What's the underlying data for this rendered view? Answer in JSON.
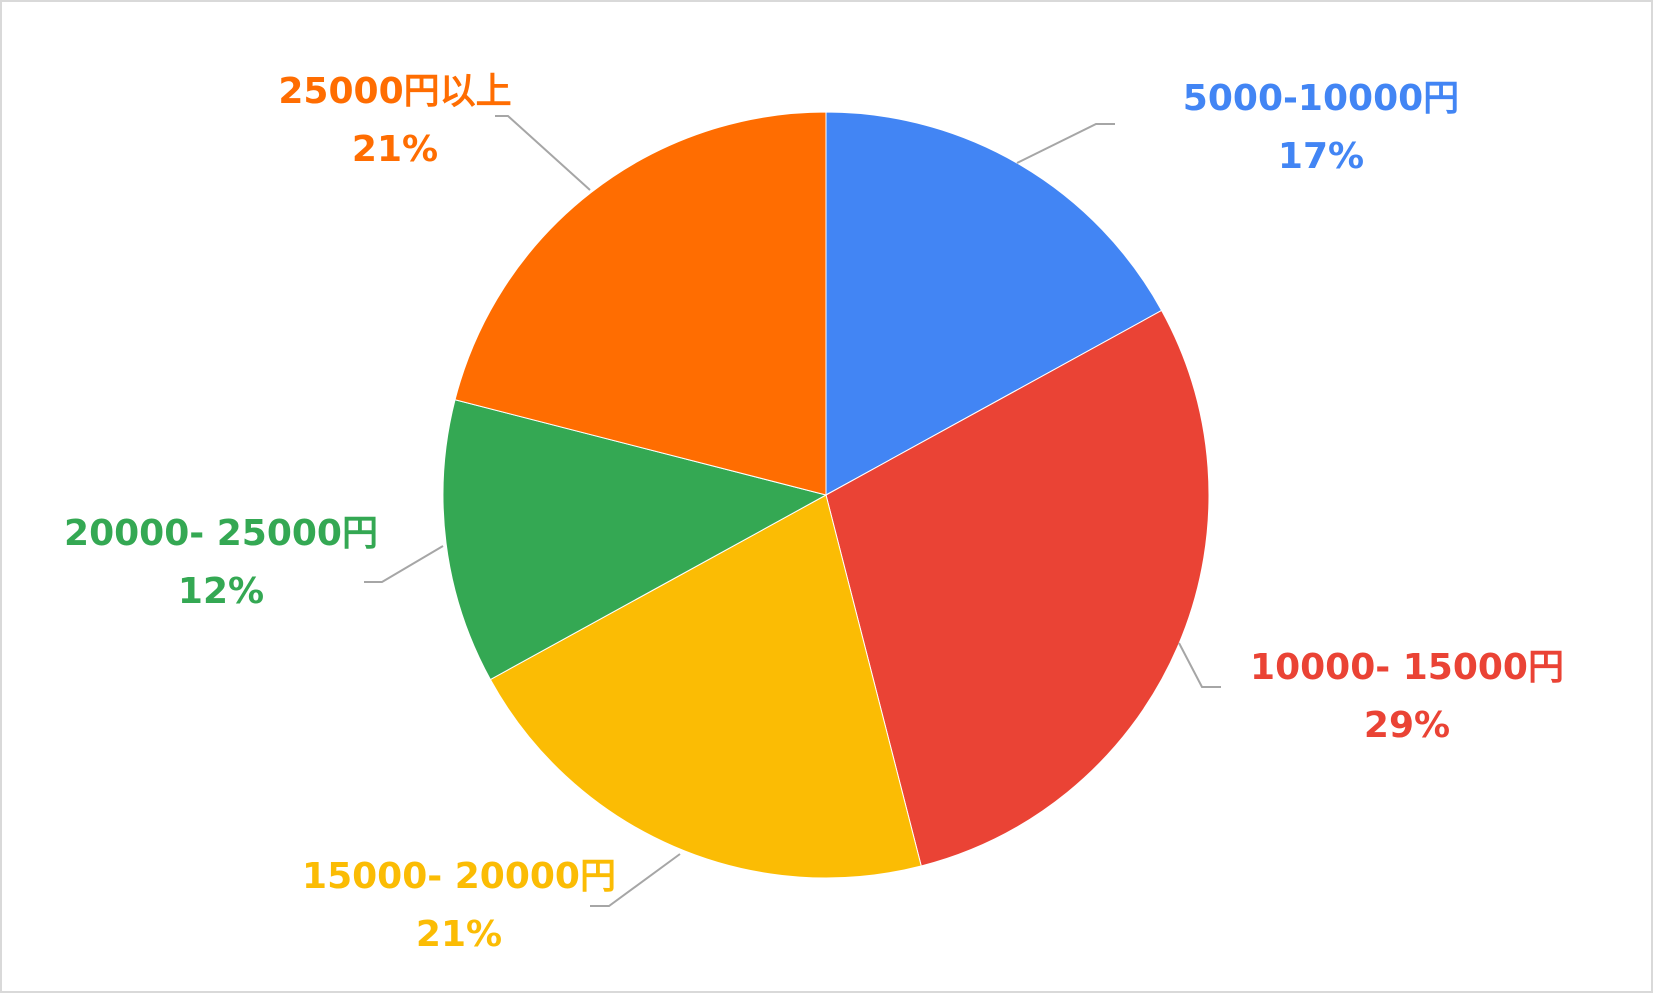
{
  "chart_data": {
    "type": "pie",
    "categories": [
      "5000-10000円",
      "10000- 15000円",
      "15000- 20000円",
      "20000- 25000円",
      "25000円以上"
    ],
    "values": [
      17,
      29,
      21,
      12,
      21
    ],
    "value_labels": [
      "17%",
      "29%",
      "21%",
      "12%",
      "21%"
    ],
    "colors": [
      "#4285f4",
      "#ea4335",
      "#fbbc04",
      "#34a853",
      "#ff6d01"
    ]
  }
}
